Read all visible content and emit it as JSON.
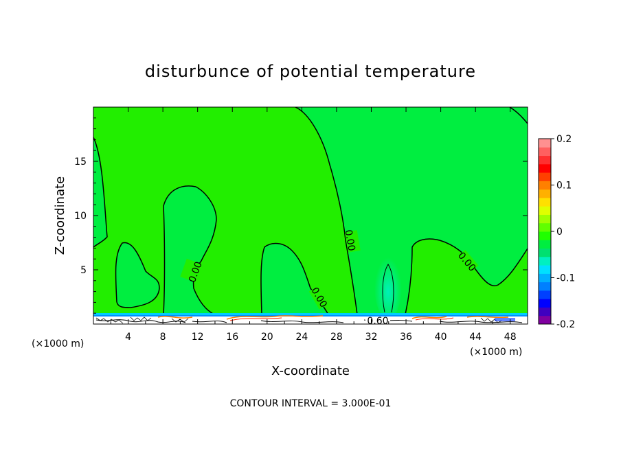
{
  "chart_data": {
    "type": "heatmap",
    "title": "disturbunce of potential temperature",
    "xlabel": "X-coordinate",
    "ylabel": "Z-coordinate",
    "x_unit": "(×1000 m)",
    "z_unit": "(×1000 m)",
    "x_range": [
      0,
      50
    ],
    "z_range": [
      0,
      20
    ],
    "x_ticks": [
      4,
      8,
      12,
      16,
      20,
      24,
      28,
      32,
      36,
      40,
      44,
      48
    ],
    "z_ticks": [
      5,
      10,
      15
    ],
    "note": "CONTOUR INTERVAL = 3.000E-01",
    "contour_labels": [
      "0.00",
      "0.00",
      "0.00",
      "0.00",
      "0.60"
    ],
    "colorbar": {
      "range": [
        -0.2,
        0.2
      ],
      "tick_values": [
        0.2,
        0.1,
        0,
        -0.1,
        -0.2
      ],
      "tick_labels": [
        "0.2",
        "0.1",
        "0",
        "-0.1",
        "-0.2"
      ],
      "colors": [
        "#8000a0",
        "#4000c0",
        "#0000ff",
        "#0040ff",
        "#0080ff",
        "#00b0ff",
        "#00e0ff",
        "#00f0c0",
        "#00e070",
        "#00ee40",
        "#20ff00",
        "#60ff00",
        "#a0ff00",
        "#e0ff00",
        "#ffe000",
        "#ffb000",
        "#ff8000",
        "#ff4000",
        "#ff0000",
        "#ff3030",
        "#ff6060",
        "#ff9090"
      ]
    },
    "background_value": 0,
    "background_color": "#22ee00",
    "weak_negative_color": "#00ee40",
    "near_surface_negative_color": "#00ccff"
  }
}
